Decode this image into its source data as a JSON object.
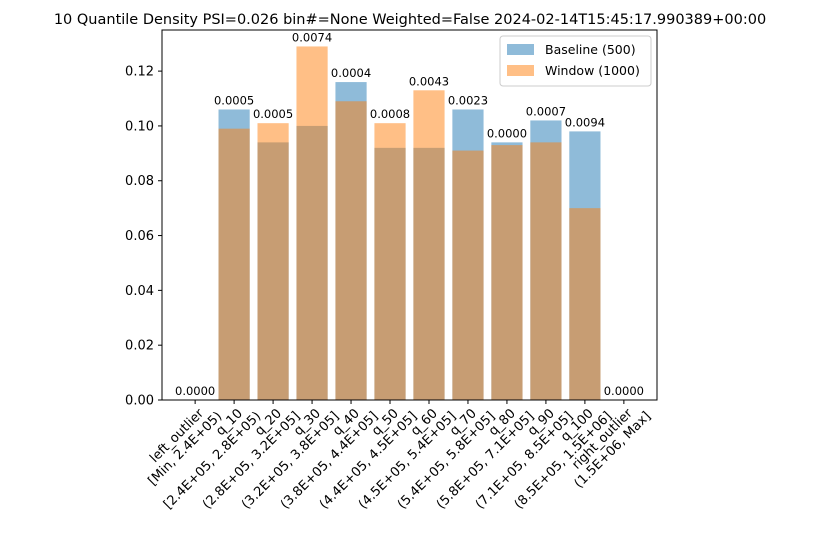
{
  "chart_data": {
    "type": "bar",
    "title": "10 Quantile Density PSI=0.026 bin#=None Weighted=False 2024-02-14T15:45:17.990389+00:00",
    "xlabel": "",
    "ylabel": "",
    "ylim": [
      0,
      0.135
    ],
    "yticks": [
      "0.00",
      "0.02",
      "0.04",
      "0.06",
      "0.08",
      "0.10",
      "0.12"
    ],
    "categories": [
      [
        "left_outlier",
        "[Min, 2.4E+05)"
      ],
      [
        "q_10",
        "[2.4E+05, 2.8E+05)"
      ],
      [
        "q_20",
        "(2.8E+05, 3.2E+05]"
      ],
      [
        "q_30",
        "(3.2E+05, 3.8E+05]"
      ],
      [
        "q_40",
        "(3.8E+05, 4.4E+05]"
      ],
      [
        "q_50",
        "(4.4E+05, 4.5E+05]"
      ],
      [
        "q_60",
        "(4.5E+05, 5.4E+05]"
      ],
      [
        "q_70",
        "(5.4E+05, 5.8E+05]"
      ],
      [
        "q_80",
        "(5.8E+05, 7.1E+05]"
      ],
      [
        "q_90",
        "(7.1E+05, 8.5E+05]"
      ],
      [
        "q_100",
        "(8.5E+05, 1.5E+06]"
      ],
      [
        "right_outlier",
        "(1.5E+06, Max]"
      ]
    ],
    "series": [
      {
        "name": "Baseline (500)",
        "color": "#1f77b4",
        "values": [
          0.0,
          0.106,
          0.094,
          0.1,
          0.116,
          0.092,
          0.092,
          0.106,
          0.094,
          0.102,
          0.098,
          0.0
        ]
      },
      {
        "name": "Window (1000)",
        "color": "#ff7f0e",
        "values": [
          0.0,
          0.099,
          0.101,
          0.129,
          0.109,
          0.101,
          0.113,
          0.091,
          0.093,
          0.094,
          0.07,
          0.0
        ]
      }
    ],
    "bar_labels": [
      "0.0000",
      "0.0005",
      "0.0005",
      "0.0074",
      "0.0004",
      "0.0008",
      "0.0043",
      "0.0023",
      "0.0000",
      "0.0007",
      "0.0094",
      "0.0000"
    ],
    "legend_position": "top-right",
    "grid": false
  }
}
